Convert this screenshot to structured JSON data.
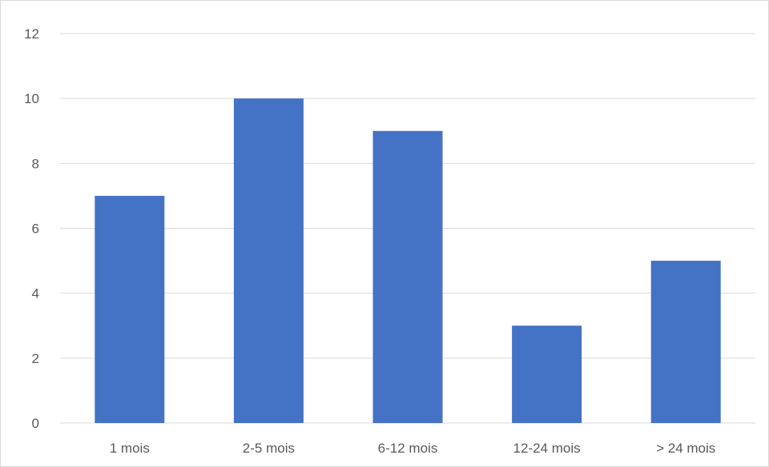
{
  "chart_data": {
    "type": "bar",
    "title": "",
    "xlabel": "",
    "ylabel": "",
    "categories": [
      "1 mois",
      "2-5 mois",
      "6-12 mois",
      "12-24 mois",
      "> 24 mois"
    ],
    "values": [
      7,
      10,
      9,
      3,
      5
    ],
    "ylim": [
      0,
      12
    ],
    "yticks": [
      0,
      2,
      4,
      6,
      8,
      10,
      12
    ],
    "ytick_labels": [
      "0",
      "2",
      "4",
      "6",
      "8",
      "10",
      "12"
    ],
    "grid": true,
    "legend": "none",
    "colors": {
      "bar": "#4472c4",
      "grid": "#d9d9d9",
      "text": "#595959"
    }
  }
}
